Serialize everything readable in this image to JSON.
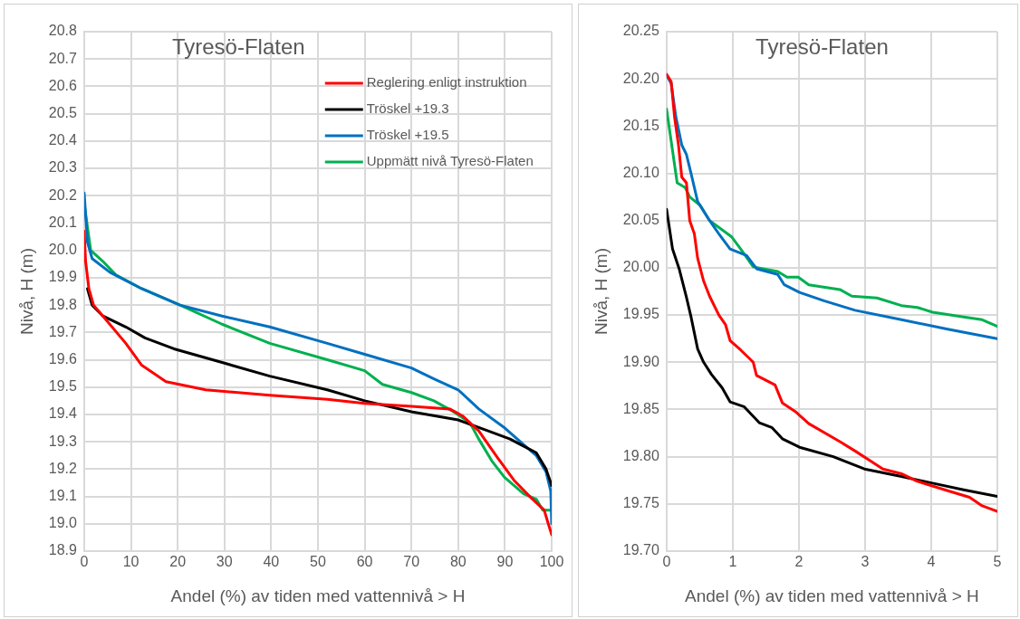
{
  "chart_data": [
    {
      "type": "line",
      "title": "Tyresö-Flaten",
      "xlabel": "Andel (%) av tiden med vattennivå > H",
      "ylabel": "Nivå, H (m)",
      "xlim": [
        0,
        100
      ],
      "xticks": [
        0,
        10,
        20,
        30,
        40,
        50,
        60,
        70,
        80,
        90,
        100
      ],
      "ylim": [
        18.9,
        20.8
      ],
      "yticks": [
        {
          "value": 18.9,
          "label": "18.9"
        },
        {
          "value": 19,
          "label": "19.0"
        },
        {
          "value": 19.1,
          "label": "19.1"
        },
        {
          "value": 19.2,
          "label": "19.2"
        },
        {
          "value": 19.3,
          "label": "19.3"
        },
        {
          "value": 19.4,
          "label": "19.4"
        },
        {
          "value": 19.5,
          "label": "19.5"
        },
        {
          "value": 19.6,
          "label": "19.6"
        },
        {
          "value": 19.7,
          "label": "19.7"
        },
        {
          "value": 19.8,
          "label": "19.8"
        },
        {
          "value": 19.9,
          "label": "19.9"
        },
        {
          "value": 20,
          "label": "20.0"
        },
        {
          "value": 20.1,
          "label": "20.1"
        },
        {
          "value": 20.2,
          "label": "20.2"
        },
        {
          "value": 20.3,
          "label": "20.3"
        },
        {
          "value": 20.4,
          "label": "20.4"
        },
        {
          "value": 20.5,
          "label": "20.5"
        },
        {
          "value": 20.6,
          "label": "20.6"
        },
        {
          "value": 20.7,
          "label": "20.7"
        },
        {
          "value": 20.8,
          "label": "20.8"
        }
      ],
      "grid": true,
      "legend": "top right",
      "marker": "none",
      "line_style": "solid",
      "series": [
        {
          "name": "Reglering enligt instruktion",
          "color": "#ff0000",
          "x": [
            0,
            0.3,
            1,
            2,
            4,
            8.9,
            12.3,
            17.5,
            26,
            39.7,
            52,
            60,
            70,
            78.2,
            80.9,
            84.4,
            88.5,
            91.9,
            95.3,
            98.4,
            99.1,
            100
          ],
          "values": [
            20.07,
            19.96,
            19.86,
            19.8,
            19.76,
            19.66,
            19.58,
            19.52,
            19.49,
            19.47,
            19.455,
            19.44,
            19.43,
            19.42,
            19.395,
            19.34,
            19.24,
            19.16,
            19.1,
            19.05,
            19.01,
            18.96
          ]
        },
        {
          "name": "Tröskel +19.3",
          "color": "#000000",
          "x": [
            0.7,
            1.7,
            4,
            8.9,
            13,
            19.2,
            29.5,
            39.7,
            52,
            60,
            70,
            80,
            86.4,
            91.1,
            93.3,
            96.7,
            98.8,
            100
          ],
          "values": [
            19.86,
            19.8,
            19.76,
            19.72,
            19.68,
            19.64,
            19.59,
            19.54,
            19.49,
            19.45,
            19.41,
            19.38,
            19.34,
            19.31,
            19.29,
            19.26,
            19.2,
            19.14
          ]
        },
        {
          "name": "Tröskel +19.5",
          "color": "#0070c0",
          "x": [
            0,
            0.7,
            1.7,
            5.5,
            12.3,
            20.5,
            29.5,
            39.7,
            52,
            60,
            70,
            74.8,
            80,
            84.4,
            90,
            93.3,
            96.7,
            98.8,
            99.8,
            100
          ],
          "values": [
            20.21,
            20.03,
            19.97,
            19.92,
            19.86,
            19.8,
            19.76,
            19.72,
            19.66,
            19.62,
            19.57,
            19.53,
            19.49,
            19.42,
            19.35,
            19.3,
            19.25,
            19.19,
            19.12,
            19
          ]
        },
        {
          "name": "Uppmätt nivå Tyresö-Flaten",
          "color": "#00b050",
          "x": [
            0,
            1.4,
            4,
            6.8,
            12.3,
            20.5,
            29.5,
            39.7,
            52,
            60,
            63.8,
            70,
            74.8,
            79,
            82.5,
            84.4,
            87.2,
            89.9,
            94,
            96.7,
            98.1,
            100
          ],
          "values": [
            20.17,
            20,
            19.96,
            19.91,
            19.86,
            19.8,
            19.73,
            19.66,
            19.6,
            19.56,
            19.51,
            19.48,
            19.45,
            19.41,
            19.37,
            19.31,
            19.23,
            19.17,
            19.11,
            19.09,
            19.05,
            19.05
          ]
        }
      ]
    },
    {
      "type": "line",
      "title": "Tyresö-Flaten",
      "xlabel": "Andel (%) av tiden med vattennivå > H",
      "ylabel": "Nivå, H (m)",
      "xlim": [
        0,
        5
      ],
      "xticks": [
        0,
        1,
        2,
        3,
        4,
        5
      ],
      "ylim": [
        19.7,
        20.25
      ],
      "yticks": [
        {
          "value": 19.7,
          "label": "19.70"
        },
        {
          "value": 19.75,
          "label": "19.75"
        },
        {
          "value": 19.8,
          "label": "19.80"
        },
        {
          "value": 19.85,
          "label": "19.85"
        },
        {
          "value": 19.9,
          "label": "19.90"
        },
        {
          "value": 19.95,
          "label": "19.95"
        },
        {
          "value": 20,
          "label": "20.00"
        },
        {
          "value": 20.05,
          "label": "20.05"
        },
        {
          "value": 20.1,
          "label": "20.10"
        },
        {
          "value": 20.15,
          "label": "20.15"
        },
        {
          "value": 20.2,
          "label": "20.20"
        },
        {
          "value": 20.25,
          "label": "20.25"
        }
      ],
      "grid": true,
      "marker": "none",
      "line_style": "solid",
      "series": [
        {
          "color": "#ff0000",
          "x": [
            0,
            0.07,
            0.12,
            0.18,
            0.23,
            0.3,
            0.35,
            0.42,
            0.47,
            0.56,
            0.65,
            0.79,
            0.89,
            0.96,
            1.12,
            1.31,
            1.36,
            1.64,
            1.75,
            1.96,
            2.15,
            2.62,
            2.85,
            3.27,
            3.55,
            3.79,
            4.25,
            4.58,
            4.77,
            5
          ],
          "values": [
            20.205,
            20.197,
            20.16,
            20.13,
            20.096,
            20.09,
            20.05,
            20.036,
            20.01,
            19.986,
            19.97,
            19.95,
            19.94,
            19.923,
            19.913,
            19.9,
            19.886,
            19.876,
            19.857,
            19.847,
            19.835,
            19.816,
            19.806,
            19.787,
            19.782,
            19.774,
            19.764,
            19.757,
            19.748,
            19.742
          ]
        },
        {
          "color": "#000000",
          "x": [
            0,
            0.09,
            0.19,
            0.3,
            0.37,
            0.47,
            0.56,
            0.68,
            0.84,
            0.96,
            1.17,
            1.4,
            1.59,
            1.75,
            2.01,
            2.52,
            2.99,
            3.55,
            4.02,
            4.49,
            5
          ],
          "values": [
            20.062,
            20.02,
            19.999,
            19.969,
            19.948,
            19.914,
            19.9,
            19.887,
            19.873,
            19.858,
            19.853,
            19.836,
            19.831,
            19.819,
            19.81,
            19.8,
            19.787,
            19.779,
            19.772,
            19.765,
            19.758
          ]
        },
        {
          "color": "#0070c0",
          "x": [
            0,
            0.07,
            0.14,
            0.23,
            0.3,
            0.37,
            0.47,
            0.65,
            0.79,
            0.96,
            1.21,
            1.36,
            1.68,
            1.78,
            2.01,
            2.38,
            2.85,
            3.55,
            4.25,
            5
          ],
          "values": [
            20.204,
            20.195,
            20.16,
            20.13,
            20.12,
            20.1,
            20.07,
            20.05,
            20.036,
            20.02,
            20.013,
            19.999,
            19.993,
            19.982,
            19.974,
            19.965,
            19.955,
            19.945,
            19.935,
            19.925
          ]
        },
        {
          "color": "#00b050",
          "x": [
            0,
            0.16,
            0.28,
            0.35,
            0.51,
            0.65,
            0.98,
            1.12,
            1.31,
            1.68,
            1.82,
            1.99,
            2.15,
            2.62,
            2.8,
            3.18,
            3.55,
            3.79,
            4.02,
            4.49,
            4.77,
            5
          ],
          "values": [
            20.168,
            20.09,
            20.085,
            20.075,
            20.066,
            20.05,
            20.033,
            20.02,
            20.001,
            19.996,
            19.99,
            19.99,
            19.982,
            19.977,
            19.97,
            19.968,
            19.96,
            19.958,
            19.953,
            19.948,
            19.945,
            19.938
          ]
        }
      ]
    }
  ]
}
